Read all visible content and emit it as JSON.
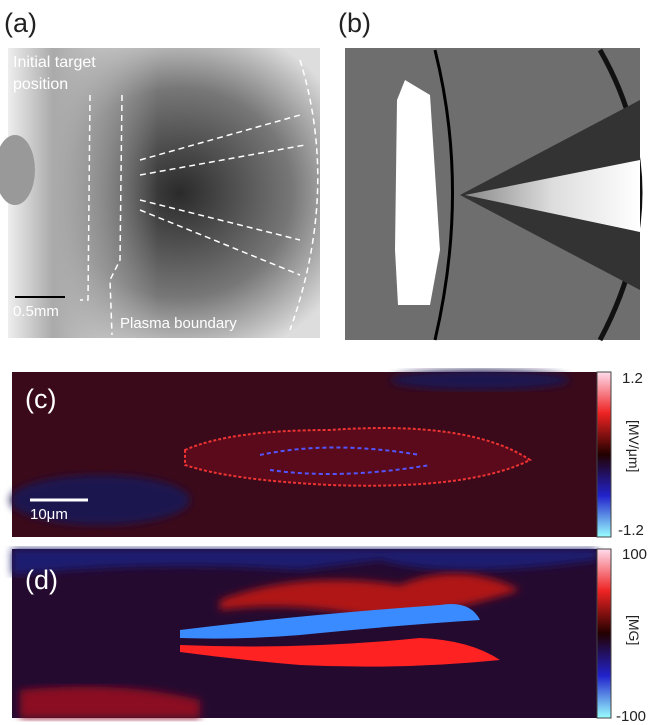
{
  "panels": [
    {
      "label": "(a)",
      "annotations": [
        "Initial target position",
        "0.5mm",
        "Plasma boundary"
      ]
    },
    {
      "label": "(b)"
    },
    {
      "label": "(c)",
      "scale_bar": "10μm",
      "colorbar": {
        "max": 1.2,
        "min": -1.2,
        "unit": "[MV/μm]"
      }
    },
    {
      "label": "(d)",
      "colorbar": {
        "max": 100,
        "min": -100,
        "unit": "[MG]"
      }
    }
  ]
}
